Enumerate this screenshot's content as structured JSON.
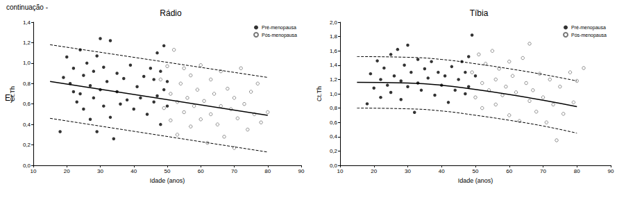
{
  "header": "continuação -",
  "panel_label": "E)",
  "chart_data": [
    {
      "type": "scatter",
      "title": "Rádio",
      "x_label": "Idade (anos)",
      "y_label": "Ct.Th",
      "xlim": [
        10,
        90
      ],
      "xticks": [
        10,
        20,
        30,
        40,
        50,
        60,
        70,
        80,
        90
      ],
      "ylim": [
        0,
        1.4
      ],
      "yticks": [
        {
          "value": 0,
          "label": "0,0"
        },
        {
          "value": 0.2,
          "label": "0,2"
        },
        {
          "value": 0.4,
          "label": "0,4"
        },
        {
          "value": 0.6,
          "label": "0,6"
        },
        {
          "value": 0.8,
          "label": "0,8"
        },
        {
          "value": 1.0,
          "label": "1,0"
        },
        {
          "value": 1.2,
          "label": "1,2"
        },
        {
          "value": 1.4,
          "label": "1,4"
        }
      ],
      "grid": false,
      "legend": "upper right",
      "series": [
        {
          "name": "Pré-menopausa",
          "type": "scatter",
          "marker": "circle",
          "color": "#000000",
          "x": [
            18,
            19,
            20,
            21,
            22,
            22,
            23,
            24,
            24,
            25,
            25,
            26,
            27,
            27,
            28,
            28,
            29,
            29,
            30,
            30,
            31,
            31,
            32,
            33,
            33,
            34,
            35,
            35,
            36,
            37,
            38,
            39,
            40,
            41,
            42,
            43,
            44,
            45,
            46,
            46,
            47,
            47,
            48,
            48,
            49,
            49,
            50,
            50
          ],
          "values": [
            0.33,
            0.86,
            1.06,
            0.8,
            0.72,
            0.95,
            0.62,
            1.13,
            0.7,
            0.88,
            0.55,
            1.0,
            0.78,
            0.45,
            0.92,
            0.66,
            1.07,
            0.33,
            1.24,
            0.74,
            0.58,
            0.96,
            0.82,
            1.22,
            0.47,
            0.26,
            0.72,
            0.9,
            0.6,
            0.85,
            0.64,
            0.98,
            0.55,
            0.77,
            0.66,
            0.87,
            0.5,
            0.95,
            0.62,
            0.84,
            1.1,
            0.68,
            0.4,
            0.92,
            1.17,
            0.74,
            0.58,
            0.82
          ]
        },
        {
          "name": "Pós-menopausa",
          "type": "scatter",
          "marker": "open_circle",
          "color": "#555555",
          "x": [
            48,
            49,
            50,
            51,
            51,
            52,
            53,
            53,
            54,
            55,
            55,
            56,
            57,
            57,
            58,
            59,
            60,
            60,
            61,
            62,
            63,
            63,
            64,
            65,
            66,
            66,
            67,
            68,
            69,
            70,
            70,
            71,
            72,
            73,
            74,
            75,
            76,
            77,
            78,
            80
          ],
          "values": [
            0.84,
            0.56,
            0.97,
            0.7,
            0.44,
            1.13,
            0.62,
            0.3,
            0.8,
            0.52,
            0.95,
            0.66,
            0.38,
            0.88,
            0.58,
            0.74,
            0.45,
            0.98,
            0.63,
            0.22,
            0.84,
            0.5,
            0.7,
            0.4,
            0.92,
            0.58,
            0.28,
            0.75,
            0.55,
            0.17,
            0.66,
            0.46,
            0.95,
            0.6,
            0.35,
            0.72,
            0.5,
            0.8,
            0.42,
            0.52
          ]
        },
        {
          "type": "line",
          "line_style": "solid",
          "color": "#000000",
          "x": [
            15,
            80
          ],
          "values": [
            0.82,
            0.49
          ]
        },
        {
          "type": "line",
          "line_style": "dashed",
          "color": "#000000",
          "x": [
            15,
            80
          ],
          "values": [
            1.18,
            0.86
          ]
        },
        {
          "type": "line",
          "line_style": "dashed",
          "color": "#000000",
          "x": [
            15,
            80
          ],
          "values": [
            0.46,
            0.13
          ]
        }
      ]
    },
    {
      "type": "scatter",
      "title": "Tíbia",
      "x_label": "Idade (anos)",
      "y_label": "Ct.Th",
      "xlim": [
        10,
        90
      ],
      "xticks": [
        10,
        20,
        30,
        40,
        50,
        60,
        70,
        80,
        90
      ],
      "ylim": [
        0,
        2.0
      ],
      "yticks": [
        {
          "value": 0,
          "label": "0,0"
        },
        {
          "value": 0.2,
          "label": "0,2"
        },
        {
          "value": 0.4,
          "label": "0,4"
        },
        {
          "value": 0.6,
          "label": "0,6"
        },
        {
          "value": 0.8,
          "label": "0,8"
        },
        {
          "value": 1.0,
          "label": "1,0"
        },
        {
          "value": 1.2,
          "label": "1,2"
        },
        {
          "value": 1.4,
          "label": "1,4"
        },
        {
          "value": 1.6,
          "label": "1,6"
        },
        {
          "value": 1.8,
          "label": "1,8"
        },
        {
          "value": 2.0,
          "label": "2,0"
        }
      ],
      "grid": false,
      "legend": "upper right",
      "series": [
        {
          "name": "Pré-menopausa",
          "type": "scatter",
          "marker": "circle",
          "color": "#000000",
          "x": [
            18,
            19,
            20,
            21,
            22,
            22,
            23,
            24,
            25,
            25,
            26,
            27,
            28,
            28,
            29,
            30,
            30,
            31,
            32,
            33,
            33,
            34,
            35,
            36,
            37,
            38,
            39,
            40,
            41,
            42,
            43,
            44,
            45,
            46,
            47,
            47,
            48,
            48,
            49,
            50
          ],
          "values": [
            0.86,
            1.28,
            1.08,
            1.46,
            1.2,
            0.95,
            1.36,
            1.12,
            1.55,
            1.02,
            1.25,
            1.62,
            1.18,
            0.92,
            1.4,
            1.68,
            1.1,
            1.3,
            0.74,
            1.48,
            1.15,
            1.05,
            1.35,
            1.22,
            1.45,
            0.98,
            1.3,
            1.12,
            1.25,
            0.88,
            1.38,
            1.05,
            1.2,
            1.45,
            1.0,
            1.3,
            1.52,
            1.1,
            1.82,
            1.25
          ]
        },
        {
          "name": "Pós-menopausa",
          "type": "scatter",
          "marker": "open_circle",
          "color": "#555555",
          "x": [
            49,
            50,
            51,
            52,
            52,
            53,
            54,
            55,
            56,
            56,
            57,
            58,
            59,
            60,
            60,
            61,
            62,
            63,
            64,
            65,
            66,
            66,
            67,
            68,
            69,
            70,
            71,
            72,
            73,
            74,
            75,
            76,
            78,
            79,
            80,
            82
          ],
          "values": [
            1.3,
            0.95,
            1.55,
            1.15,
            0.8,
            1.42,
            1.05,
            1.6,
            1.2,
            0.85,
            1.35,
            0.98,
            1.1,
            1.45,
            0.7,
            1.25,
            1.02,
            0.62,
            1.5,
            1.15,
            1.7,
            0.9,
            1.05,
            0.75,
            1.28,
            0.95,
            0.6,
            1.2,
            0.85,
            0.35,
            1.1,
            0.72,
            1.3,
            0.88,
            1.18,
            1.36
          ]
        },
        {
          "type": "line",
          "line_style": "solid",
          "color": "#000000",
          "x": [
            15,
            30,
            40,
            50,
            60,
            70,
            80
          ],
          "values": [
            1.16,
            1.15,
            1.12,
            1.06,
            0.99,
            0.91,
            0.82
          ]
        },
        {
          "type": "line",
          "line_style": "dashed",
          "color": "#000000",
          "x": [
            15,
            30,
            40,
            50,
            60,
            70,
            80
          ],
          "values": [
            1.52,
            1.51,
            1.48,
            1.42,
            1.35,
            1.27,
            1.18
          ]
        },
        {
          "type": "line",
          "line_style": "dashed",
          "color": "#000000",
          "x": [
            15,
            30,
            40,
            50,
            60,
            70,
            80
          ],
          "values": [
            0.8,
            0.79,
            0.76,
            0.7,
            0.63,
            0.55,
            0.45
          ]
        }
      ]
    }
  ]
}
